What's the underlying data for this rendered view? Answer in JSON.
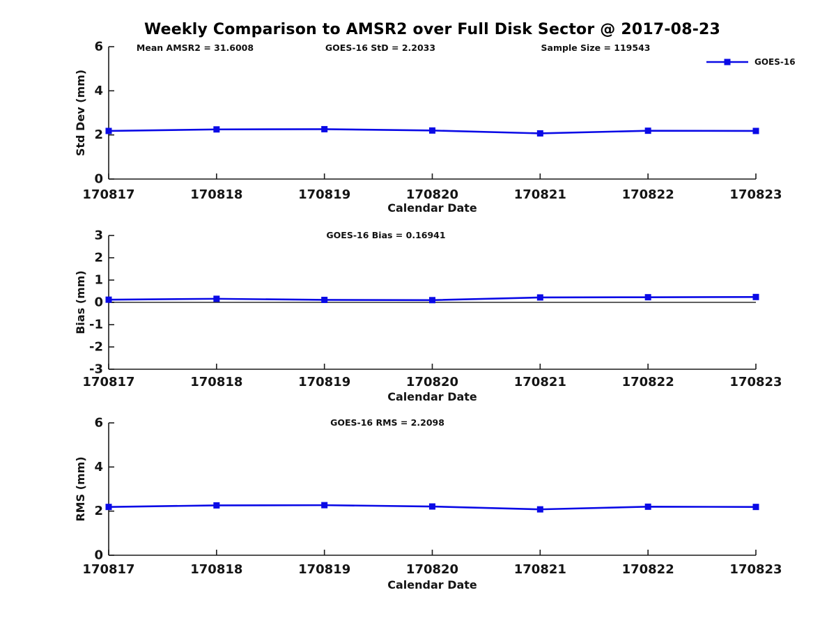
{
  "figure": {
    "title": "Weekly Comparison to AMSR2 over Full Disk Sector @ 2017-08-23",
    "legend": {
      "label": "GOES-16"
    },
    "accent_color": "#0a0ae6"
  },
  "chart_data": [
    {
      "name": "stddev",
      "type": "line",
      "title": "",
      "xlabel": "Calendar Date",
      "ylabel": "Std Dev (mm)",
      "categories": [
        "170817",
        "170818",
        "170819",
        "170820",
        "170821",
        "170822",
        "170823"
      ],
      "series": [
        {
          "name": "GOES-16",
          "color": "#0a0ae6",
          "marker": "square",
          "values": [
            2.18,
            2.25,
            2.26,
            2.2,
            2.07,
            2.19,
            2.18
          ]
        }
      ],
      "ylim": [
        0,
        6
      ],
      "yticks": [
        0,
        2,
        4,
        6
      ],
      "grid": false,
      "zero_line": false,
      "legend_position": "top-right-outside",
      "annotations": [
        "Mean AMSR2 = 31.6008",
        "GOES-16 StD = 2.2033",
        "Sample Size = 119543"
      ]
    },
    {
      "name": "bias",
      "type": "line",
      "title": "",
      "xlabel": "Calendar Date",
      "ylabel": "Bias (mm)",
      "categories": [
        "170817",
        "170818",
        "170819",
        "170820",
        "170821",
        "170822",
        "170823"
      ],
      "series": [
        {
          "name": "GOES-16",
          "color": "#0a0ae6",
          "marker": "square",
          "values": [
            0.12,
            0.16,
            0.11,
            0.1,
            0.22,
            0.23,
            0.24
          ]
        }
      ],
      "ylim": [
        -3,
        3
      ],
      "yticks": [
        -3,
        -2,
        -1,
        0,
        1,
        2,
        3
      ],
      "grid": false,
      "zero_line": true,
      "annotations": [
        "GOES-16 Bias  = 0.16941"
      ]
    },
    {
      "name": "rms",
      "type": "line",
      "title": "",
      "xlabel": "Calendar Date",
      "ylabel": "RMS (mm)",
      "categories": [
        "170817",
        "170818",
        "170819",
        "170820",
        "170821",
        "170822",
        "170823"
      ],
      "series": [
        {
          "name": "GOES-16",
          "color": "#0a0ae6",
          "marker": "square",
          "values": [
            2.19,
            2.26,
            2.27,
            2.21,
            2.08,
            2.2,
            2.19
          ]
        }
      ],
      "ylim": [
        0,
        6
      ],
      "yticks": [
        0,
        2,
        4,
        6
      ],
      "grid": false,
      "zero_line": false,
      "annotations": [
        "GOES-16 RMS = 2.2098"
      ]
    }
  ]
}
